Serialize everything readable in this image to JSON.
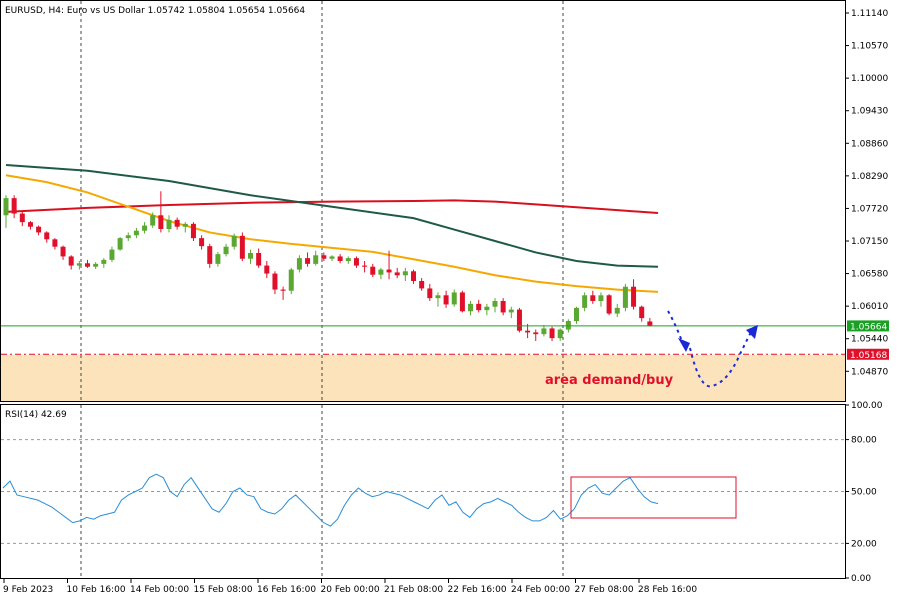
{
  "header": {
    "symbol_info": "EURUSD, H4:  Euro vs US Dollar  1.05742 1.05804 1.05654 1.05664"
  },
  "rsi_header": "RSI(14) 42.69",
  "colors": {
    "bull": "#5aa832",
    "bear": "#e0102a",
    "ma_fast": "#f5a800",
    "ma_mid": "#1e5a46",
    "ma_slow": "#d8101e",
    "current_price": "#1aa024",
    "support": "#e0102a",
    "demand_zone": "#fde3bc",
    "forecast": "#1a28d8",
    "rsi_line": "#2a8ed6",
    "rsi_box": "#e0102a"
  },
  "annotation": "area demand/buy",
  "price_tags": {
    "current": "1.05664",
    "support": "1.05168"
  },
  "chart_data": [
    {
      "type": "candlestick",
      "title": "",
      "ylim": [
        1.0435,
        1.1135
      ],
      "y_ticks": [
        "1.11140",
        "1.10570",
        "1.10000",
        "1.09430",
        "1.08860",
        "1.08290",
        "1.07720",
        "1.07150",
        "1.06580",
        "1.06010",
        "1.05440",
        "1.04870"
      ],
      "x_ticks": [
        "9 Feb 2023",
        "10 Feb 16:00",
        "14 Feb 00:00",
        "15 Feb 08:00",
        "16 Feb 16:00",
        "20 Feb 00:00",
        "21 Feb 08:00",
        "22 Feb 16:00",
        "24 Feb 00:00",
        "27 Feb 08:00",
        "28 Feb 16:00"
      ],
      "candles": [
        [
          1.076,
          1.0795,
          1.0738,
          1.079
        ],
        [
          1.079,
          1.0795,
          1.0755,
          1.0763
        ],
        [
          1.0763,
          1.0768,
          1.0741,
          1.0748
        ],
        [
          1.0748,
          1.075,
          1.0735,
          1.074
        ],
        [
          1.074,
          1.0742,
          1.0725,
          1.073
        ],
        [
          1.073,
          1.0732,
          1.0712,
          1.0718
        ],
        [
          1.0718,
          1.072,
          1.07,
          1.0705
        ],
        [
          1.0705,
          1.0707,
          1.0682,
          1.0688
        ],
        [
          1.0688,
          1.069,
          1.0665,
          1.0672
        ],
        [
          1.0672,
          1.068,
          1.0665,
          1.0676
        ],
        [
          1.0676,
          1.0682,
          1.0668,
          1.067
        ],
        [
          1.067,
          1.0678,
          1.0666,
          1.0675
        ],
        [
          1.0675,
          1.0685,
          1.0668,
          1.0682
        ],
        [
          1.0682,
          1.0705,
          1.0678,
          1.07
        ],
        [
          1.07,
          1.0722,
          1.0698,
          1.072
        ],
        [
          1.072,
          1.073,
          1.0715,
          1.0725
        ],
        [
          1.0725,
          1.0738,
          1.072,
          1.0733
        ],
        [
          1.0733,
          1.0748,
          1.0728,
          1.0742
        ],
        [
          1.0742,
          1.0765,
          1.0738,
          1.076
        ],
        [
          1.076,
          1.0802,
          1.073,
          1.0736
        ],
        [
          1.0736,
          1.076,
          1.073,
          1.0752
        ],
        [
          1.0752,
          1.0756,
          1.0735,
          1.074
        ],
        [
          1.074,
          1.0748,
          1.073,
          1.0745
        ],
        [
          1.0745,
          1.0748,
          1.0715,
          1.072
        ],
        [
          1.072,
          1.0725,
          1.07,
          1.0706
        ],
        [
          1.0706,
          1.071,
          1.0668,
          1.0675
        ],
        [
          1.0675,
          1.0696,
          1.067,
          1.0692
        ],
        [
          1.0692,
          1.071,
          1.0688,
          1.0705
        ],
        [
          1.0705,
          1.0728,
          1.07,
          1.0724
        ],
        [
          1.0724,
          1.073,
          1.068,
          1.0684
        ],
        [
          1.0684,
          1.07,
          1.0675,
          1.0694
        ],
        [
          1.0694,
          1.0702,
          1.0668,
          1.0672
        ],
        [
          1.0672,
          1.068,
          1.065,
          1.0658
        ],
        [
          1.0658,
          1.0662,
          1.0622,
          1.063
        ],
        [
          1.063,
          1.0635,
          1.0612,
          1.0628
        ],
        [
          1.0628,
          1.0668,
          1.0622,
          1.0665
        ],
        [
          1.0665,
          1.069,
          1.066,
          1.0685
        ],
        [
          1.0685,
          1.0695,
          1.067,
          1.0675
        ],
        [
          1.0675,
          1.0698,
          1.0672,
          1.069
        ],
        [
          1.069,
          1.0695,
          1.068,
          1.0684
        ],
        [
          1.0684,
          1.069,
          1.068,
          1.0688
        ],
        [
          1.0688,
          1.0692,
          1.0676,
          1.068
        ],
        [
          1.068,
          1.0688,
          1.0675,
          1.0685
        ],
        [
          1.0685,
          1.0688,
          1.0668,
          1.0672
        ],
        [
          1.0672,
          1.068,
          1.066,
          1.067
        ],
        [
          1.067,
          1.0675,
          1.0652,
          1.0656
        ],
        [
          1.0656,
          1.0668,
          1.0648,
          1.0665
        ],
        [
          1.0665,
          1.0698,
          1.0648,
          1.066
        ],
        [
          1.066,
          1.0668,
          1.065,
          1.0655
        ],
        [
          1.0655,
          1.0668,
          1.0645,
          1.0662
        ],
        [
          1.0662,
          1.0665,
          1.064,
          1.0645
        ],
        [
          1.0645,
          1.065,
          1.0628,
          1.0632
        ],
        [
          1.0632,
          1.064,
          1.061,
          1.0615
        ],
        [
          1.0615,
          1.0625,
          1.06,
          1.062
        ],
        [
          1.062,
          1.0628,
          1.0598,
          1.0604
        ],
        [
          1.0604,
          1.063,
          1.06,
          1.0625
        ],
        [
          1.0625,
          1.0628,
          1.059,
          1.0592
        ],
        [
          1.0592,
          1.061,
          1.0585,
          1.0605
        ],
        [
          1.0605,
          1.0612,
          1.059,
          1.0594
        ],
        [
          1.0594,
          1.0605,
          1.0585,
          1.06
        ],
        [
          1.06,
          1.0615,
          1.059,
          1.061
        ],
        [
          1.061,
          1.0615,
          1.0585,
          1.059
        ],
        [
          1.059,
          1.06,
          1.058,
          1.0595
        ],
        [
          1.0595,
          1.0598,
          1.0555,
          1.0558
        ],
        [
          1.0558,
          1.057,
          1.0545,
          1.0555
        ],
        [
          1.0555,
          1.056,
          1.054,
          1.0552
        ],
        [
          1.0552,
          1.0568,
          1.0548,
          1.0562
        ],
        [
          1.0562,
          1.0565,
          1.054,
          1.0545
        ],
        [
          1.0545,
          1.0562,
          1.054,
          1.056
        ],
        [
          1.056,
          1.0578,
          1.0555,
          1.0575
        ],
        [
          1.0575,
          1.06,
          1.057,
          1.0598
        ],
        [
          1.0598,
          1.0625,
          1.0592,
          1.062
        ],
        [
          1.062,
          1.0628,
          1.0605,
          1.061
        ],
        [
          1.061,
          1.0625,
          1.06,
          1.062
        ],
        [
          1.062,
          1.0622,
          1.0585,
          1.0588
        ],
        [
          1.0588,
          1.0605,
          1.0582,
          1.0598
        ],
        [
          1.0598,
          1.064,
          1.0592,
          1.0635
        ],
        [
          1.0635,
          1.0648,
          1.0595,
          1.06
        ],
        [
          1.06,
          1.0602,
          1.0574,
          1.058
        ],
        [
          1.05742,
          1.05804,
          1.05654,
          1.05664
        ]
      ],
      "ma_fast": [
        [
          0,
          1.083
        ],
        [
          5,
          1.0818
        ],
        [
          10,
          1.08
        ],
        [
          15,
          1.0775
        ],
        [
          20,
          1.075
        ],
        [
          25,
          1.073
        ],
        [
          30,
          1.0718
        ],
        [
          35,
          1.071
        ],
        [
          40,
          1.0703
        ],
        [
          45,
          1.0696
        ],
        [
          50,
          1.0683
        ],
        [
          55,
          1.067
        ],
        [
          60,
          1.0655
        ],
        [
          65,
          1.0644
        ],
        [
          70,
          1.0636
        ],
        [
          75,
          1.063
        ],
        [
          80,
          1.0626
        ]
      ],
      "ma_mid": [
        [
          0,
          1.0848
        ],
        [
          10,
          1.0838
        ],
        [
          20,
          1.082
        ],
        [
          30,
          1.0795
        ],
        [
          40,
          1.0775
        ],
        [
          50,
          1.0755
        ],
        [
          55,
          1.0735
        ],
        [
          60,
          1.0715
        ],
        [
          65,
          1.0695
        ],
        [
          70,
          1.068
        ],
        [
          75,
          1.0672
        ],
        [
          80,
          1.067
        ]
      ],
      "ma_slow": [
        [
          0,
          1.0766
        ],
        [
          10,
          1.0773
        ],
        [
          20,
          1.0778
        ],
        [
          30,
          1.0782
        ],
        [
          40,
          1.0784
        ],
        [
          50,
          1.0785
        ],
        [
          55,
          1.0786
        ],
        [
          60,
          1.0784
        ],
        [
          65,
          1.0779
        ],
        [
          70,
          1.0774
        ],
        [
          75,
          1.0769
        ],
        [
          80,
          1.0764
        ]
      ],
      "current_price": 1.05664,
      "support_level": 1.05168,
      "demand_zone": [
        1.0435,
        1.0516
      ]
    },
    {
      "type": "line",
      "title": "",
      "ylim": [
        0,
        100
      ],
      "y_ticks": [
        "100.00",
        "80.00",
        "50.00",
        "20.00",
        "0.00"
      ],
      "levels": [
        80,
        50,
        20
      ],
      "values": [
        52,
        56,
        48,
        47,
        46,
        45,
        43,
        41,
        38,
        35,
        32,
        33,
        35,
        34,
        36,
        37,
        38,
        45,
        48,
        50,
        52,
        58,
        60,
        58,
        50,
        47,
        54,
        58,
        52,
        46,
        40,
        38,
        43,
        50,
        52,
        48,
        47,
        40,
        38,
        37,
        40,
        45,
        48,
        44,
        40,
        36,
        32,
        30,
        34,
        42,
        48,
        52,
        49,
        47,
        48,
        50,
        49,
        48,
        46,
        44,
        42,
        40,
        45,
        48,
        42,
        44,
        38,
        35,
        40,
        43,
        44,
        46,
        44,
        42,
        38,
        35,
        33,
        33,
        35,
        39,
        34,
        36,
        40,
        48,
        52,
        54,
        49,
        48,
        52,
        56,
        58,
        52,
        47,
        44,
        43
      ],
      "annotation_box": [
        0.38,
        55
      ]
    }
  ]
}
